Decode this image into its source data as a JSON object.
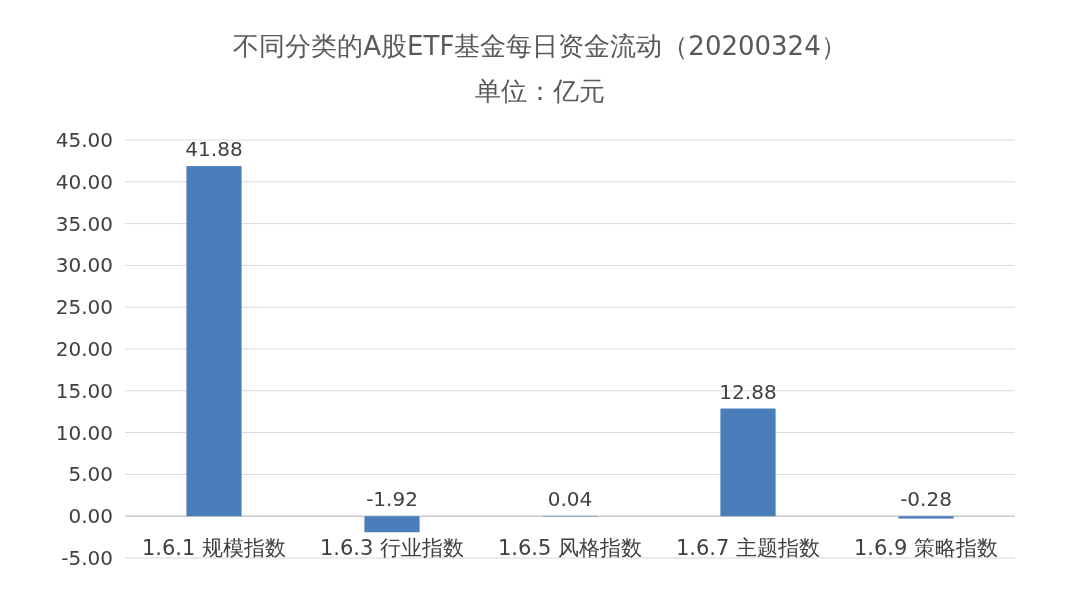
{
  "chart_data": {
    "type": "bar",
    "title": "不同分类的A股ETF基金每日资金流动（20200324）",
    "subtitle": "单位：亿元",
    "categories": [
      "1.6.1 规模指数",
      "1.6.3 行业指数",
      "1.6.5 风格指数",
      "1.6.7 主题指数",
      "1.6.9 策略指数"
    ],
    "values": [
      41.88,
      -1.92,
      0.04,
      12.88,
      -0.28
    ],
    "color": "#4a7ebb",
    "ylim": [
      -5,
      45
    ],
    "yticks": [
      {
        "value": -5,
        "label": "-5.00"
      },
      {
        "value": 0,
        "label": "0.00"
      },
      {
        "value": 5,
        "label": "5.00"
      },
      {
        "value": 10,
        "label": "10.00"
      },
      {
        "value": 15,
        "label": "15.00"
      },
      {
        "value": 20,
        "label": "20.00"
      },
      {
        "value": 25,
        "label": "25.00"
      },
      {
        "value": 30,
        "label": "30.00"
      },
      {
        "value": 35,
        "label": "35.00"
      },
      {
        "value": 40,
        "label": "40.00"
      },
      {
        "value": 45,
        "label": "45.00"
      }
    ],
    "grid": "y",
    "data_labels": true
  }
}
